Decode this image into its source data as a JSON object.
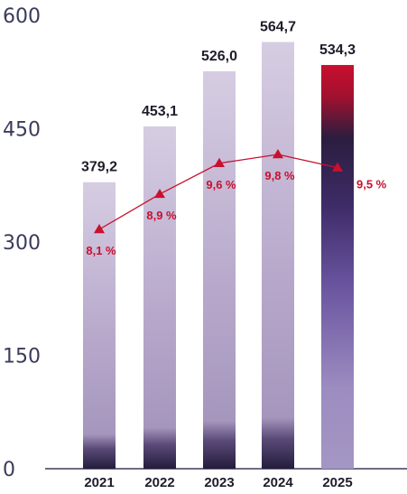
{
  "chart_data": {
    "type": "bar",
    "categories": [
      "2021",
      "2022",
      "2023",
      "2024",
      "2025"
    ],
    "values": [
      379.2,
      453.1,
      526.0,
      564.7,
      534.3
    ],
    "value_labels": [
      "379,2",
      "453,1",
      "526,0",
      "564,7",
      "534,3"
    ],
    "ylim": [
      0,
      600
    ],
    "yticks": [
      0,
      150,
      300,
      450,
      600
    ],
    "ytick_labels": [
      "0",
      "150",
      "300",
      "450",
      "600"
    ],
    "line_series": {
      "type": "line",
      "values": [
        8.1,
        8.9,
        9.6,
        9.8,
        9.5
      ],
      "labels": [
        "8,1 %",
        "8,9 %",
        "9,6 %",
        "9,8 %",
        "9,5 %"
      ]
    },
    "grid": false,
    "legend": "none",
    "highlighted_category": "2025",
    "colors": {
      "bar_light": "#c3b6d3",
      "bar_dark": "#2a2244",
      "highlight_top": "#c8102e",
      "highlight_mid": "#2b1d3f",
      "highlight_bottom": "#9f8fc0",
      "line": "#c8102e",
      "axis": "#3b3b5c",
      "text": "#1d1d2b"
    }
  }
}
